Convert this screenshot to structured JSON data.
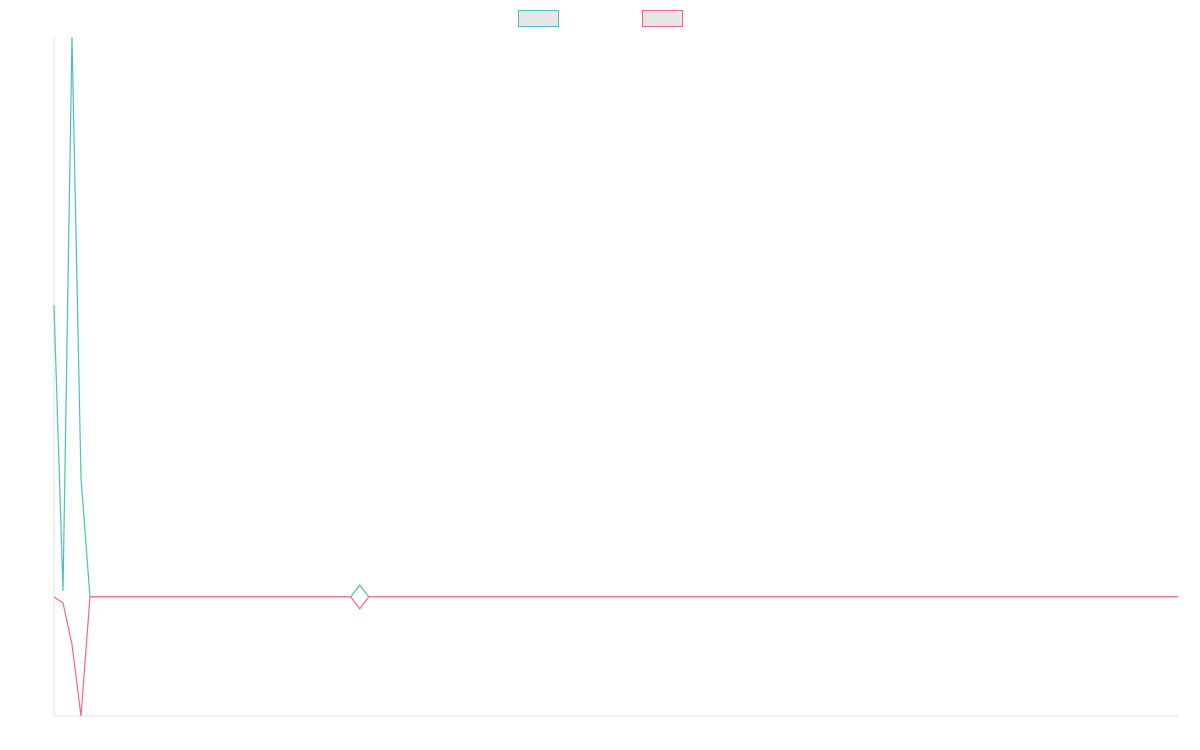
{
  "chart_data": {
    "type": "line",
    "title": "",
    "xlabel": "",
    "ylabel": "",
    "grid": false,
    "legend": "top-center",
    "xlim": [
      0,
      125
    ],
    "ylim": [
      -1,
      4.7
    ],
    "series": [
      {
        "color": "#4bc0c0",
        "fill": "#e6e6e6",
        "values": [
          2.45,
          0.05,
          4.7,
          1.0,
          0.0,
          0.0,
          0.0,
          0.0,
          0.0,
          0.0,
          0.0,
          0.0,
          0.0,
          0.0,
          0.0,
          0.0,
          0.0,
          0.0,
          0.0,
          0.0,
          0.0,
          0.0,
          0.0,
          0.0,
          0.0,
          0.0,
          0.0,
          0.0,
          0.0,
          0.0,
          0.0,
          0.0,
          0.0,
          0.0,
          0.1,
          0.0,
          0.0,
          0.0,
          0.0,
          0.0,
          0.0,
          0.0,
          0.0,
          0.0,
          0.0,
          0.0,
          0.0,
          0.0,
          0.0,
          0.0,
          0.0,
          0.0,
          0.0,
          0.0,
          0.0,
          0.0,
          0.0,
          0.0,
          0.0,
          0.0,
          0.0,
          0.0,
          0.0,
          0.0,
          0.0,
          0.0,
          0.0,
          0.0,
          0.0,
          0.0,
          0.0,
          0.0,
          0.0,
          0.0,
          0.0,
          0.0,
          0.0,
          0.0,
          0.0,
          0.0,
          0.0,
          0.0,
          0.0,
          0.0,
          0.0,
          0.0,
          0.0,
          0.0,
          0.0,
          0.0,
          0.0,
          0.0,
          0.0,
          0.0,
          0.0,
          0.0,
          0.0,
          0.0,
          0.0,
          0.0,
          0.0,
          0.0,
          0.0,
          0.0,
          0.0,
          0.0,
          0.0,
          0.0,
          0.0,
          0.0,
          0.0,
          0.0,
          0.0,
          0.0,
          0.0,
          0.0,
          0.0,
          0.0,
          0.0,
          0.0,
          0.0,
          0.0,
          0.0,
          0.0,
          0.0,
          0.0
        ]
      },
      {
        "color": "#ff6384",
        "fill": "#e6e6e6",
        "values": [
          0.0,
          -0.05,
          -0.4,
          -1.0,
          0.0,
          0.0,
          0.0,
          0.0,
          0.0,
          0.0,
          0.0,
          0.0,
          0.0,
          0.0,
          0.0,
          0.0,
          0.0,
          0.0,
          0.0,
          0.0,
          0.0,
          0.0,
          0.0,
          0.0,
          0.0,
          0.0,
          0.0,
          0.0,
          0.0,
          0.0,
          0.0,
          0.0,
          0.0,
          0.0,
          -0.1,
          0.0,
          0.0,
          0.0,
          0.0,
          0.0,
          0.0,
          0.0,
          0.0,
          0.0,
          0.0,
          0.0,
          0.0,
          0.0,
          0.0,
          0.0,
          0.0,
          0.0,
          0.0,
          0.0,
          0.0,
          0.0,
          0.0,
          0.0,
          0.0,
          0.0,
          0.0,
          0.0,
          0.0,
          0.0,
          0.0,
          0.0,
          0.0,
          0.0,
          0.0,
          0.0,
          0.0,
          0.0,
          0.0,
          0.0,
          0.0,
          0.0,
          0.0,
          0.0,
          0.0,
          0.0,
          0.0,
          0.0,
          0.0,
          0.0,
          0.0,
          0.0,
          0.0,
          0.0,
          0.0,
          0.0,
          0.0,
          0.0,
          0.0,
          0.0,
          0.0,
          0.0,
          0.0,
          0.0,
          0.0,
          0.0,
          0.0,
          0.0,
          0.0,
          0.0,
          0.0,
          0.0,
          0.0,
          0.0,
          0.0,
          0.0,
          0.0,
          0.0,
          0.0,
          0.0,
          0.0,
          0.0,
          0.0,
          0.0,
          0.0,
          0.0,
          0.0,
          0.0,
          0.0,
          0.0,
          0.0,
          0.0
        ]
      }
    ]
  }
}
